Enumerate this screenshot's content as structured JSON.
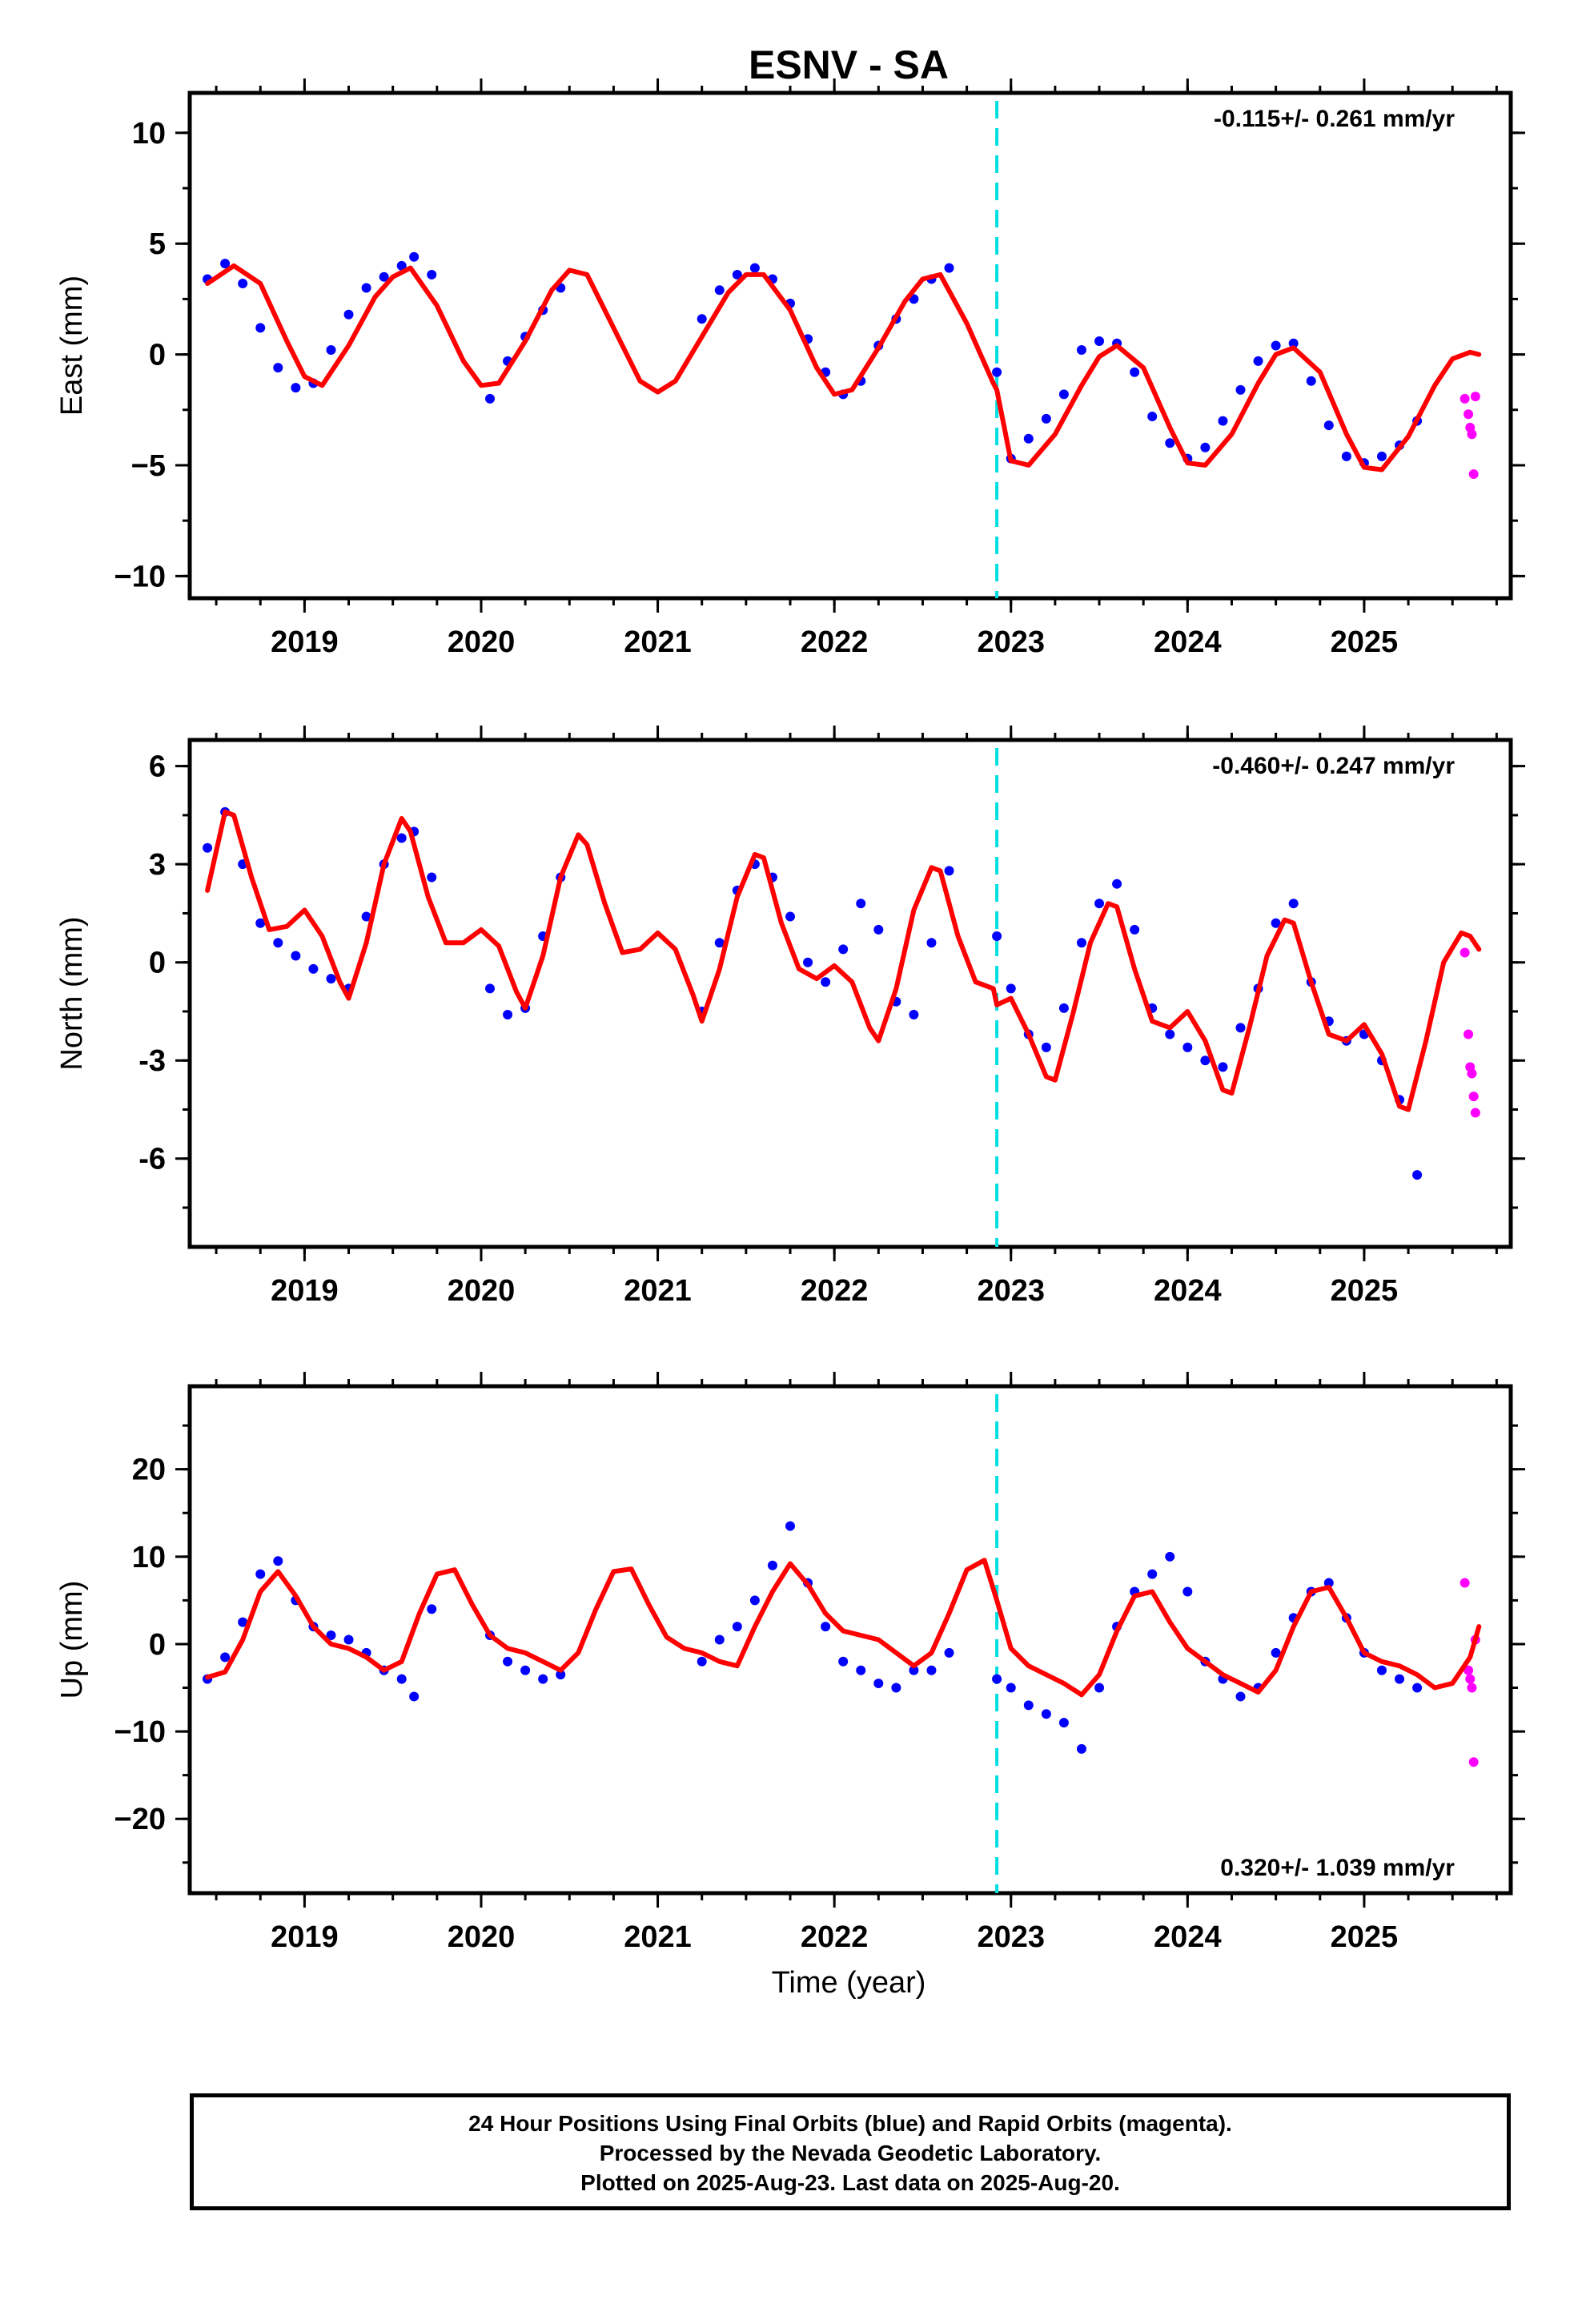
{
  "title": "ESNV - SA",
  "xlabel": "Time (year)",
  "colors": {
    "final_orbits": "#0000ff",
    "rapid_orbits": "#ff00ff",
    "model": "#ff0000",
    "equipment_change": "#00e0e0",
    "frame": "#000000"
  },
  "caption": [
    "24 Hour Positions Using Final Orbits (blue) and Rapid Orbits (magenta).",
    "Processed by the Nevada Geodetic Laboratory.",
    "Plotted on 2025-Aug-23. Last data on 2025-Aug-20."
  ],
  "chart_data": [
    {
      "type": "scatter",
      "panel": "east",
      "ylabel": "East (mm)",
      "rate_label": "-0.115+/- 0.261 mm/yr",
      "rate_label_position": "top-right",
      "xlim": [
        2018.35,
        2025.83
      ],
      "ylim": [
        -11,
        11.8
      ],
      "xticks": [
        2019,
        2020,
        2021,
        2022,
        2023,
        2024,
        2025
      ],
      "yticks": [
        -10,
        -5,
        0,
        5,
        10
      ],
      "ytick_labels": [
        "−10",
        "−5",
        "0",
        "5",
        "10"
      ],
      "equipment_change_x": 2022.92,
      "series": [
        {
          "name": "Final Orbits (blue)",
          "kind": "points",
          "color": "#0000ff",
          "x": [
            2018.45,
            2018.55,
            2018.65,
            2018.75,
            2018.85,
            2018.95,
            2019.05,
            2019.15,
            2019.25,
            2019.35,
            2019.45,
            2019.55,
            2019.62,
            2019.72,
            2020.05,
            2020.15,
            2020.25,
            2020.35,
            2020.45,
            2021.25,
            2021.35,
            2021.45,
            2021.55,
            2021.65,
            2021.75,
            2021.85,
            2021.95,
            2022.05,
            2022.15,
            2022.25,
            2022.35,
            2022.45,
            2022.55,
            2022.65,
            2022.92,
            2023.0,
            2023.1,
            2023.2,
            2023.3,
            2023.4,
            2023.5,
            2023.6,
            2023.7,
            2023.8,
            2023.9,
            2024.0,
            2024.1,
            2024.2,
            2024.3,
            2024.4,
            2024.5,
            2024.6,
            2024.7,
            2024.8,
            2024.9,
            2025.0,
            2025.1,
            2025.2,
            2025.3
          ],
          "y": [
            3.4,
            4.1,
            3.2,
            1.2,
            -0.6,
            -1.5,
            -1.3,
            0.2,
            1.8,
            3.0,
            3.5,
            4.0,
            4.4,
            3.6,
            -2.0,
            -0.3,
            0.8,
            2.0,
            3.0,
            1.6,
            2.9,
            3.6,
            3.9,
            3.4,
            2.3,
            0.7,
            -0.8,
            -1.8,
            -1.2,
            0.4,
            1.6,
            2.5,
            3.4,
            3.9,
            -0.8,
            -4.7,
            -3.8,
            -2.9,
            -1.8,
            0.2,
            0.6,
            0.5,
            -0.8,
            -2.8,
            -4.0,
            -4.7,
            -4.2,
            -3.0,
            -1.6,
            -0.3,
            0.4,
            0.5,
            -1.2,
            -3.2,
            -4.6,
            -4.9,
            -4.6,
            -4.1,
            -3.0
          ]
        },
        {
          "name": "Rapid Orbits (magenta)",
          "kind": "points",
          "color": "#ff00ff",
          "x": [
            2025.57,
            2025.59,
            2025.6,
            2025.61,
            2025.62,
            2025.63
          ],
          "y": [
            -2.0,
            -2.7,
            -3.3,
            -3.6,
            -5.4,
            -1.9
          ]
        },
        {
          "name": "Model",
          "kind": "line",
          "color": "#ff0000",
          "x": [
            2018.45,
            2018.6,
            2018.75,
            2018.9,
            2019.0,
            2019.1,
            2019.25,
            2019.4,
            2019.5,
            2019.6,
            2019.75,
            2019.9,
            2020.0,
            2020.1,
            2020.25,
            2020.4,
            2020.5,
            2020.6,
            2020.75,
            2020.9,
            2021.0,
            2021.1,
            2021.25,
            2021.4,
            2021.5,
            2021.6,
            2021.75,
            2021.9,
            2022.0,
            2022.1,
            2022.25,
            2022.4,
            2022.5,
            2022.6,
            2022.75,
            2022.9,
            2022.92,
            2023.0,
            2023.1,
            2023.25,
            2023.4,
            2023.5,
            2023.6,
            2023.75,
            2023.9,
            2024.0,
            2024.1,
            2024.25,
            2024.4,
            2024.5,
            2024.6,
            2024.75,
            2024.9,
            2025.0,
            2025.1,
            2025.25,
            2025.4,
            2025.5,
            2025.6,
            2025.65
          ],
          "y": [
            3.2,
            4.0,
            3.2,
            0.6,
            -1.0,
            -1.4,
            0.4,
            2.6,
            3.5,
            3.9,
            2.2,
            -0.3,
            -1.4,
            -1.3,
            0.6,
            2.9,
            3.8,
            3.6,
            1.2,
            -1.2,
            -1.7,
            -1.2,
            0.8,
            2.8,
            3.6,
            3.6,
            2.0,
            -0.6,
            -1.8,
            -1.6,
            0.3,
            2.4,
            3.4,
            3.6,
            1.4,
            -1.3,
            -1.6,
            -4.8,
            -5.0,
            -3.6,
            -1.4,
            -0.1,
            0.4,
            -0.6,
            -3.3,
            -4.9,
            -5.0,
            -3.6,
            -1.3,
            0.0,
            0.3,
            -0.8,
            -3.6,
            -5.1,
            -5.2,
            -3.7,
            -1.4,
            -0.2,
            0.1,
            0.0
          ]
        }
      ]
    },
    {
      "type": "scatter",
      "panel": "north",
      "ylabel": "North (mm)",
      "rate_label": "-0.460+/- 0.247 mm/yr",
      "rate_label_position": "top-right",
      "xlim": [
        2018.35,
        2025.83
      ],
      "ylim": [
        -8.7,
        6.8
      ],
      "xticks": [
        2019,
        2020,
        2021,
        2022,
        2023,
        2024,
        2025
      ],
      "yticks": [
        -6,
        -3,
        0,
        3,
        6
      ],
      "ytick_labels": [
        "-6",
        "-3",
        "0",
        "3",
        "6"
      ],
      "equipment_change_x": 2022.92,
      "series": [
        {
          "name": "Final Orbits (blue)",
          "kind": "points",
          "color": "#0000ff",
          "x": [
            2018.45,
            2018.55,
            2018.65,
            2018.75,
            2018.85,
            2018.95,
            2019.05,
            2019.15,
            2019.25,
            2019.35,
            2019.45,
            2019.55,
            2019.62,
            2019.72,
            2020.05,
            2020.15,
            2020.25,
            2020.35,
            2020.45,
            2021.25,
            2021.35,
            2021.45,
            2021.55,
            2021.65,
            2021.75,
            2021.85,
            2021.95,
            2022.05,
            2022.15,
            2022.25,
            2022.35,
            2022.45,
            2022.55,
            2022.65,
            2022.92,
            2023.0,
            2023.1,
            2023.2,
            2023.3,
            2023.4,
            2023.5,
            2023.6,
            2023.7,
            2023.8,
            2023.9,
            2024.0,
            2024.1,
            2024.2,
            2024.3,
            2024.4,
            2024.5,
            2024.6,
            2024.7,
            2024.8,
            2024.9,
            2025.0,
            2025.1,
            2025.2,
            2025.3
          ],
          "y": [
            3.5,
            4.6,
            3.0,
            1.2,
            0.6,
            0.2,
            -0.2,
            -0.5,
            -0.8,
            1.4,
            3.0,
            3.8,
            4.0,
            2.6,
            -0.8,
            -1.6,
            -1.4,
            0.8,
            2.6,
            -1.5,
            0.6,
            2.2,
            3.0,
            2.6,
            1.4,
            0.0,
            -0.6,
            0.4,
            1.8,
            1.0,
            -1.2,
            -1.6,
            0.6,
            2.8,
            0.8,
            -0.8,
            -2.2,
            -2.6,
            -1.4,
            0.6,
            1.8,
            2.4,
            1.0,
            -1.4,
            -2.2,
            -2.6,
            -3.0,
            -3.2,
            -2.0,
            -0.8,
            1.2,
            1.8,
            -0.6,
            -1.8,
            -2.4,
            -2.2,
            -3.0,
            -4.2,
            -6.5
          ]
        },
        {
          "name": "Rapid Orbits (magenta)",
          "kind": "points",
          "color": "#ff00ff",
          "x": [
            2025.57,
            2025.59,
            2025.6,
            2025.61,
            2025.62,
            2025.63
          ],
          "y": [
            0.3,
            -2.2,
            -3.2,
            -3.4,
            -4.1,
            -4.6
          ]
        },
        {
          "name": "Model",
          "kind": "line",
          "color": "#ff0000",
          "x": [
            2018.45,
            2018.55,
            2018.6,
            2018.7,
            2018.8,
            2018.9,
            2019.0,
            2019.1,
            2019.2,
            2019.25,
            2019.35,
            2019.45,
            2019.55,
            2019.6,
            2019.7,
            2019.8,
            2019.9,
            2020.0,
            2020.1,
            2020.2,
            2020.25,
            2020.35,
            2020.45,
            2020.55,
            2020.6,
            2020.7,
            2020.8,
            2020.9,
            2021.0,
            2021.1,
            2021.2,
            2021.25,
            2021.35,
            2021.45,
            2021.55,
            2021.6,
            2021.7,
            2021.8,
            2021.9,
            2022.0,
            2022.1,
            2022.2,
            2022.25,
            2022.35,
            2022.45,
            2022.55,
            2022.6,
            2022.7,
            2022.8,
            2022.9,
            2022.92,
            2023.0,
            2023.1,
            2023.2,
            2023.25,
            2023.35,
            2023.45,
            2023.55,
            2023.6,
            2023.7,
            2023.8,
            2023.9,
            2024.0,
            2024.1,
            2024.2,
            2024.25,
            2024.35,
            2024.45,
            2024.55,
            2024.6,
            2024.7,
            2024.8,
            2024.9,
            2025.0,
            2025.1,
            2025.2,
            2025.25,
            2025.35,
            2025.45,
            2025.55,
            2025.6,
            2025.65
          ],
          "y": [
            2.2,
            4.6,
            4.5,
            2.6,
            1.0,
            1.1,
            1.6,
            0.8,
            -0.6,
            -1.1,
            0.6,
            3.0,
            4.4,
            4.0,
            2.0,
            0.6,
            0.6,
            1.0,
            0.5,
            -0.9,
            -1.4,
            0.2,
            2.6,
            3.9,
            3.6,
            1.8,
            0.3,
            0.4,
            0.9,
            0.4,
            -1.0,
            -1.8,
            -0.2,
            2.0,
            3.3,
            3.2,
            1.2,
            -0.2,
            -0.5,
            -0.1,
            -0.6,
            -2.0,
            -2.4,
            -0.8,
            1.6,
            2.9,
            2.8,
            0.8,
            -0.6,
            -0.8,
            -1.3,
            -1.1,
            -2.2,
            -3.5,
            -3.6,
            -1.6,
            0.6,
            1.8,
            1.7,
            -0.2,
            -1.8,
            -2.0,
            -1.5,
            -2.4,
            -3.9,
            -4.0,
            -2.0,
            0.2,
            1.3,
            1.2,
            -0.6,
            -2.2,
            -2.4,
            -1.9,
            -2.8,
            -4.4,
            -4.5,
            -2.4,
            0.0,
            0.9,
            0.8,
            0.4
          ]
        }
      ]
    },
    {
      "type": "scatter",
      "panel": "up",
      "ylabel": "Up (mm)",
      "rate_label": "0.320+/- 1.039 mm/yr",
      "rate_label_position": "bottom-right",
      "xlim": [
        2018.35,
        2025.83
      ],
      "ylim": [
        -28.5,
        29.5
      ],
      "xticks": [
        2019,
        2020,
        2021,
        2022,
        2023,
        2024,
        2025
      ],
      "yticks": [
        -20,
        -10,
        0,
        10,
        20
      ],
      "ytick_labels": [
        "−20",
        "−10",
        "0",
        "10",
        "20"
      ],
      "equipment_change_x": 2022.92,
      "series": [
        {
          "name": "Final Orbits (blue)",
          "kind": "points",
          "color": "#0000ff",
          "x": [
            2018.45,
            2018.55,
            2018.65,
            2018.75,
            2018.85,
            2018.95,
            2019.05,
            2019.15,
            2019.25,
            2019.35,
            2019.45,
            2019.55,
            2019.62,
            2019.72,
            2020.05,
            2020.15,
            2020.25,
            2020.35,
            2020.45,
            2021.25,
            2021.35,
            2021.45,
            2021.55,
            2021.65,
            2021.75,
            2021.85,
            2021.95,
            2022.05,
            2022.15,
            2022.25,
            2022.35,
            2022.45,
            2022.55,
            2022.65,
            2022.92,
            2023.0,
            2023.1,
            2023.2,
            2023.3,
            2023.4,
            2023.5,
            2023.6,
            2023.7,
            2023.8,
            2023.9,
            2024.0,
            2024.1,
            2024.2,
            2024.3,
            2024.4,
            2024.5,
            2024.6,
            2024.7,
            2024.8,
            2024.9,
            2025.0,
            2025.1,
            2025.2,
            2025.3
          ],
          "y": [
            -4.0,
            -1.5,
            2.5,
            8.0,
            9.5,
            5.0,
            2.0,
            1.0,
            0.5,
            -1.0,
            -3.0,
            -4.0,
            -6.0,
            4.0,
            1.0,
            -2.0,
            -3.0,
            -4.0,
            -3.5,
            -2.0,
            0.5,
            2.0,
            5.0,
            9.0,
            13.5,
            7.0,
            2.0,
            -2.0,
            -3.0,
            -4.5,
            -5.0,
            -3.0,
            -3.0,
            -1.0,
            -4.0,
            -5.0,
            -7.0,
            -8.0,
            -9.0,
            -12.0,
            -5.0,
            2.0,
            6.0,
            8.0,
            10.0,
            6.0,
            -2.0,
            -4.0,
            -6.0,
            -5.0,
            -1.0,
            3.0,
            6.0,
            7.0,
            3.0,
            -1.0,
            -3.0,
            -4.0,
            -5.0
          ]
        },
        {
          "name": "Rapid Orbits (magenta)",
          "kind": "points",
          "color": "#ff00ff",
          "x": [
            2025.57,
            2025.59,
            2025.6,
            2025.61,
            2025.62,
            2025.63
          ],
          "y": [
            7.0,
            -3.0,
            -4.0,
            -5.0,
            -13.5,
            0.5
          ]
        },
        {
          "name": "Model",
          "kind": "line",
          "color": "#ff0000",
          "x": [
            2018.45,
            2018.55,
            2018.65,
            2018.75,
            2018.85,
            2018.95,
            2019.05,
            2019.15,
            2019.25,
            2019.35,
            2019.45,
            2019.55,
            2019.65,
            2019.75,
            2019.85,
            2019.95,
            2020.05,
            2020.15,
            2020.25,
            2020.35,
            2020.45,
            2020.55,
            2020.65,
            2020.75,
            2020.85,
            2020.95,
            2021.05,
            2021.15,
            2021.25,
            2021.35,
            2021.45,
            2021.55,
            2021.65,
            2021.75,
            2021.85,
            2021.95,
            2022.05,
            2022.15,
            2022.25,
            2022.35,
            2022.45,
            2022.55,
            2022.65,
            2022.75,
            2022.85,
            2022.92,
            2023.0,
            2023.1,
            2023.2,
            2023.3,
            2023.4,
            2023.5,
            2023.6,
            2023.7,
            2023.8,
            2023.9,
            2024.0,
            2024.1,
            2024.2,
            2024.3,
            2024.4,
            2024.5,
            2024.6,
            2024.7,
            2024.8,
            2024.9,
            2025.0,
            2025.1,
            2025.2,
            2025.3,
            2025.4,
            2025.5,
            2025.6,
            2025.65
          ],
          "y": [
            -3.8,
            -3.2,
            0.5,
            6.0,
            8.3,
            5.5,
            2.0,
            0.0,
            -0.5,
            -1.5,
            -3.0,
            -2.0,
            3.5,
            8.0,
            8.5,
            4.5,
            1.0,
            -0.5,
            -1.0,
            -2.0,
            -3.0,
            -1.0,
            4.0,
            8.3,
            8.6,
            4.5,
            0.8,
            -0.5,
            -1.0,
            -2.0,
            -2.5,
            2.0,
            6.0,
            9.2,
            6.8,
            3.5,
            1.5,
            1.0,
            0.5,
            -1.0,
            -2.5,
            -1.0,
            3.5,
            8.5,
            9.6,
            5.0,
            -0.5,
            -2.5,
            -3.5,
            -4.5,
            -5.8,
            -3.5,
            1.5,
            5.5,
            6.0,
            2.5,
            -0.5,
            -2.0,
            -3.5,
            -4.5,
            -5.5,
            -3.0,
            2.0,
            6.0,
            6.5,
            3.0,
            -1.0,
            -2.0,
            -2.5,
            -3.5,
            -5.0,
            -4.5,
            -1.5,
            2.0
          ]
        }
      ]
    }
  ]
}
